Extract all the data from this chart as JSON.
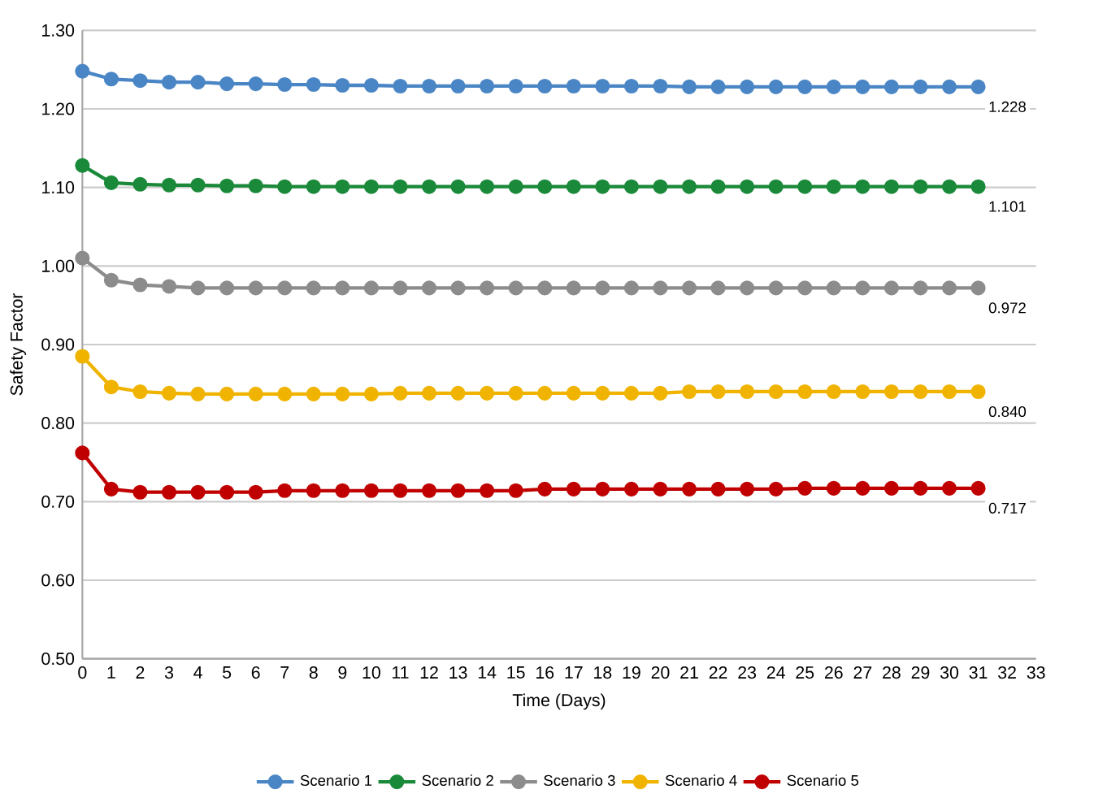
{
  "chart_data": {
    "type": "line",
    "xlabel": "Time (Days)",
    "ylabel": "Safety Factor",
    "x": [
      0,
      1,
      2,
      3,
      4,
      5,
      6,
      7,
      8,
      9,
      10,
      11,
      12,
      13,
      14,
      15,
      16,
      17,
      18,
      19,
      20,
      21,
      22,
      23,
      24,
      25,
      26,
      27,
      28,
      29,
      30,
      31
    ],
    "series": [
      {
        "name": "Scenario 1",
        "color": "#4a86c5",
        "values": [
          1.248,
          1.238,
          1.236,
          1.234,
          1.234,
          1.232,
          1.232,
          1.231,
          1.231,
          1.23,
          1.23,
          1.229,
          1.229,
          1.229,
          1.229,
          1.229,
          1.229,
          1.229,
          1.229,
          1.229,
          1.229,
          1.228,
          1.228,
          1.228,
          1.228,
          1.228,
          1.228,
          1.228,
          1.228,
          1.228,
          1.228,
          1.228
        ]
      },
      {
        "name": "Scenario 2",
        "color": "#1a8a3a",
        "values": [
          1.128,
          1.106,
          1.104,
          1.103,
          1.103,
          1.102,
          1.102,
          1.101,
          1.101,
          1.101,
          1.101,
          1.101,
          1.101,
          1.101,
          1.101,
          1.101,
          1.101,
          1.101,
          1.101,
          1.101,
          1.101,
          1.101,
          1.101,
          1.101,
          1.101,
          1.101,
          1.101,
          1.101,
          1.101,
          1.101,
          1.101,
          1.101
        ]
      },
      {
        "name": "Scenario 3",
        "color": "#8c8c8c",
        "values": [
          1.01,
          0.982,
          0.976,
          0.974,
          0.972,
          0.972,
          0.972,
          0.972,
          0.972,
          0.972,
          0.972,
          0.972,
          0.972,
          0.972,
          0.972,
          0.972,
          0.972,
          0.972,
          0.972,
          0.972,
          0.972,
          0.972,
          0.972,
          0.972,
          0.972,
          0.972,
          0.972,
          0.972,
          0.972,
          0.972,
          0.972,
          0.972
        ]
      },
      {
        "name": "Scenario 4",
        "color": "#f0b400",
        "values": [
          0.885,
          0.846,
          0.84,
          0.838,
          0.837,
          0.837,
          0.837,
          0.837,
          0.837,
          0.837,
          0.837,
          0.838,
          0.838,
          0.838,
          0.838,
          0.838,
          0.838,
          0.838,
          0.838,
          0.838,
          0.838,
          0.84,
          0.84,
          0.84,
          0.84,
          0.84,
          0.84,
          0.84,
          0.84,
          0.84,
          0.84,
          0.84
        ]
      },
      {
        "name": "Scenario 5",
        "color": "#c00000",
        "values": [
          0.762,
          0.716,
          0.712,
          0.712,
          0.712,
          0.712,
          0.712,
          0.714,
          0.714,
          0.714,
          0.714,
          0.714,
          0.714,
          0.714,
          0.714,
          0.714,
          0.716,
          0.716,
          0.716,
          0.716,
          0.716,
          0.716,
          0.716,
          0.716,
          0.716,
          0.717,
          0.717,
          0.717,
          0.717,
          0.717,
          0.717,
          0.717
        ]
      }
    ],
    "annotations": [
      "1.228",
      "1.101",
      "0.972",
      "0.840",
      "0.717"
    ],
    "xlim": [
      0,
      33
    ],
    "xticks": [
      0,
      1,
      2,
      3,
      4,
      5,
      6,
      7,
      8,
      9,
      10,
      11,
      12,
      13,
      14,
      15,
      16,
      17,
      18,
      19,
      20,
      21,
      22,
      23,
      24,
      25,
      26,
      27,
      28,
      29,
      30,
      31,
      32,
      33
    ],
    "ylim": [
      0.5,
      1.3
    ],
    "yticks": [
      {
        "value": 0.5,
        "label": "0.50"
      },
      {
        "value": 0.6,
        "label": "0.60"
      },
      {
        "value": 0.7,
        "label": "0.70"
      },
      {
        "value": 0.8,
        "label": "0.80"
      },
      {
        "value": 0.9,
        "label": "0.90"
      },
      {
        "value": 1.0,
        "label": "1.00"
      },
      {
        "value": 1.1,
        "label": "1.10"
      },
      {
        "value": 1.2,
        "label": "1.20"
      },
      {
        "value": 1.3,
        "label": "1.30"
      }
    ],
    "grid": "y",
    "legend": "bottom",
    "marker": "circle",
    "line_style": "solid"
  }
}
